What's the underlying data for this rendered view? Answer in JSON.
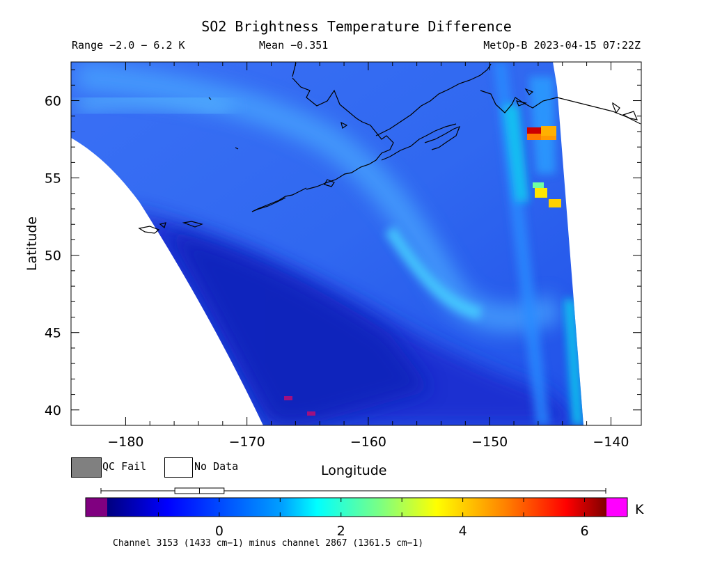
{
  "header": {
    "title": "SO2 Brightness Temperature Difference",
    "range_text": "Range −2.0 − 6.2 K",
    "mean_text": "Mean −0.351",
    "satellite_text": "MetOp-B 2023-04-15 07:22Z"
  },
  "legend": {
    "qc_fail_label": "QC Fail",
    "no_data_label": "No Data",
    "qc_fail_color": "#808080",
    "no_data_color": "#ffffff"
  },
  "map": {
    "xlabel": "Longitude",
    "ylabel": "Latitude",
    "lon_range": [
      -184.5,
      -137.5
    ],
    "lat_range": [
      39,
      62.5
    ],
    "x_ticks": [
      "−180",
      "−170",
      "−160",
      "−150",
      "−140"
    ],
    "x_tick_values": [
      -180,
      -170,
      -160,
      -150,
      -140
    ],
    "y_ticks": [
      "40",
      "45",
      "50",
      "55",
      "60"
    ],
    "y_tick_values": [
      40,
      45,
      50,
      55,
      60
    ]
  },
  "colorbar": {
    "unit": "K",
    "range": [
      -2.0,
      6.2
    ],
    "tick_labels": [
      "0",
      "2",
      "4",
      "6"
    ],
    "tick_values": [
      0,
      2,
      4,
      6
    ],
    "underflow_color": "#800080",
    "overflow_color": "#ff00ff",
    "boxplot": {
      "min": -2.0,
      "q1": -0.8,
      "median": -0.4,
      "q3": 0.0,
      "max": 6.2
    }
  },
  "footer": {
    "channel_text": "Channel 3153 (1433 cm−1) minus channel 2867 (1361.5 cm−1)"
  }
}
